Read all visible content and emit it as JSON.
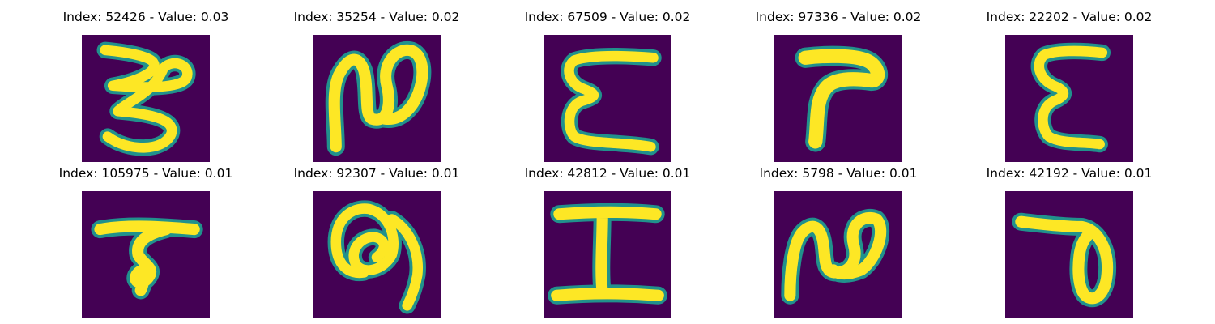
{
  "colors": {
    "background": "#440154",
    "stroke_mid": "#21918c",
    "stroke_core": "#fde725"
  },
  "panels": [
    {
      "title": "Index: 52426 - Value: 0.03",
      "glyph": "three-like-character"
    },
    {
      "title": "Index: 35254 - Value: 0.02",
      "glyph": "n-like-character"
    },
    {
      "title": "Index: 67509 - Value: 0.02",
      "glyph": "epsilon-like-character"
    },
    {
      "title": "Index: 97336 - Value: 0.02",
      "glyph": "seven-like-character"
    },
    {
      "title": "Index: 22202 - Value: 0.02",
      "glyph": "epsilon-like-character"
    },
    {
      "title": "Index: 105975 - Value: 0.01",
      "glyph": "t-like-character"
    },
    {
      "title": "Index: 92307 - Value: 0.01",
      "glyph": "nine-like-character"
    },
    {
      "title": "Index: 42812 - Value: 0.01",
      "glyph": "i-like-character"
    },
    {
      "title": "Index: 5798 - Value: 0.01",
      "glyph": "n-like-character"
    },
    {
      "title": "Index: 42192 - Value: 0.01",
      "glyph": "t-loop-like-character"
    }
  ]
}
